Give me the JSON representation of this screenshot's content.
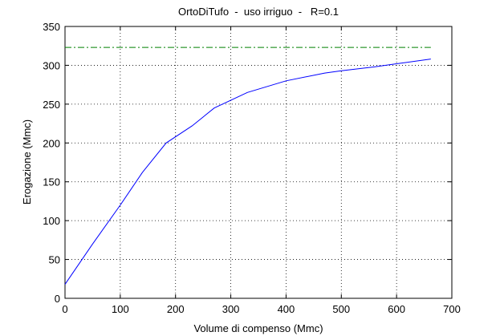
{
  "chart_data": {
    "type": "line",
    "title": "OrtoDiTufo  -  uso irriguo  -   R=0.1",
    "xlabel": "Volume di compenso (Mmc)",
    "ylabel": "Erogazione (Mmc)",
    "series": [
      {
        "color": "#0000ff",
        "dash": "none",
        "x": [
          0,
          50,
          100,
          140,
          183,
          230,
          270,
          330,
          400,
          470,
          500,
          560,
          600,
          662
        ],
        "values": [
          18,
          70,
          120,
          162,
          200,
          222,
          245,
          265,
          280,
          290,
          293,
          298,
          302,
          308
        ]
      },
      {
        "color": "#008000",
        "dash": "8 3 2 3",
        "x": [
          0,
          662
        ],
        "values": [
          323,
          323
        ]
      }
    ],
    "xlim": [
      0,
      700
    ],
    "xticks": [
      0,
      100,
      200,
      300,
      400,
      500,
      600,
      700
    ],
    "ylim": [
      0,
      350
    ],
    "yticks": [
      0,
      50,
      100,
      150,
      200,
      250,
      300,
      350
    ],
    "grid": true
  }
}
